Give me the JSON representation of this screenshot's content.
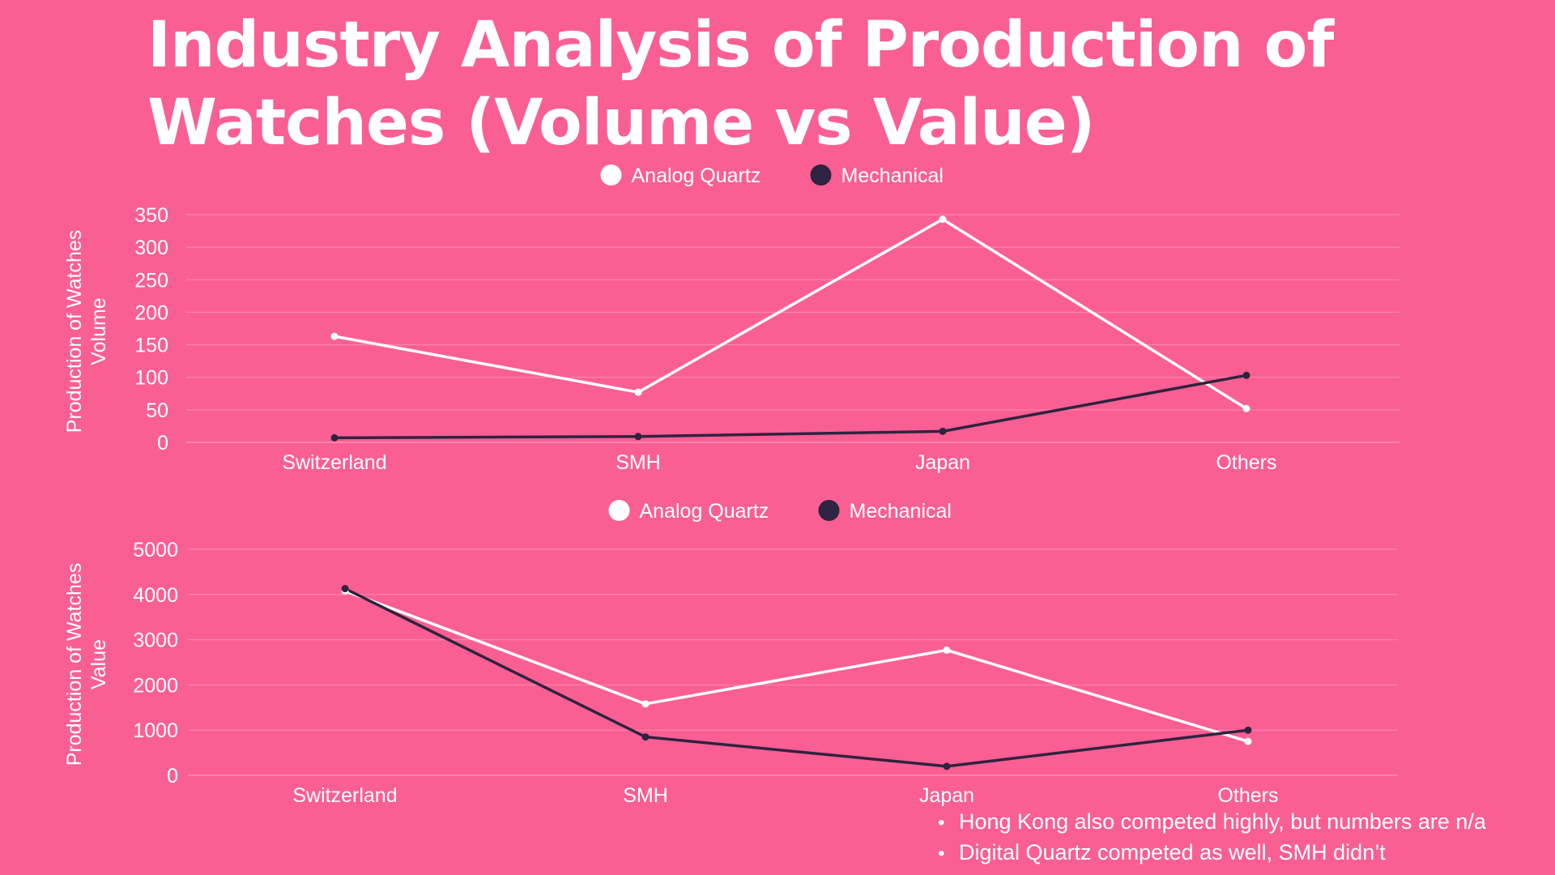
{
  "title": "Industry Analysis of Production of Watches (Volume vs Value)",
  "colors": {
    "background": "#f95f92",
    "analog_quartz": "#ffffff",
    "mechanical": "#2e2340",
    "text": "#ffffff",
    "grid": "#fb8cb1"
  },
  "chart_data": [
    {
      "type": "line",
      "title": "",
      "ylabel": "Production of Watches Volume",
      "ylabel_lines": [
        "Production of Watches",
        "Volume"
      ],
      "xlabel": "",
      "categories": [
        "Switzerland",
        "SMH",
        "Japan",
        "Others"
      ],
      "ylim": [
        0,
        350
      ],
      "yticks": [
        0,
        50,
        100,
        150,
        200,
        250,
        300,
        350
      ],
      "grid": true,
      "legend": "top-center",
      "series": [
        {
          "name": "Analog Quartz",
          "values": [
            163,
            77,
            343,
            52
          ]
        },
        {
          "name": "Mechanical",
          "values": [
            7,
            9,
            17,
            103
          ]
        }
      ]
    },
    {
      "type": "line",
      "title": "",
      "ylabel": "Production of Watches Value",
      "ylabel_lines": [
        "Production of Watches",
        "Value"
      ],
      "xlabel": "",
      "categories": [
        "Switzerland",
        "SMH",
        "Japan",
        "Others"
      ],
      "ylim": [
        0,
        5000
      ],
      "yticks": [
        0,
        1000,
        2000,
        3000,
        4000,
        5000
      ],
      "grid": true,
      "legend": "top-center",
      "series": [
        {
          "name": "Analog Quartz",
          "values": [
            4080,
            1580,
            2770,
            750
          ]
        },
        {
          "name": "Mechanical",
          "values": [
            4130,
            850,
            200,
            1000
          ]
        }
      ]
    }
  ],
  "notes": [
    "Hong Kong also competed highly, but numbers are n/a",
    "Digital Quartz competed as well, SMH didn’t"
  ]
}
